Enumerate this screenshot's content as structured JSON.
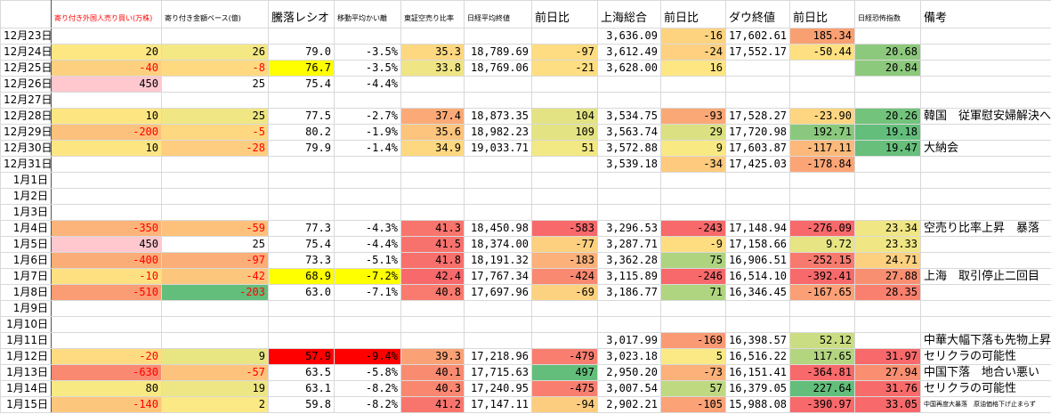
{
  "table": {
    "header": [
      null,
      "寄り付き外国人売り買い(万株)",
      "寄り付き金額ベース(億)",
      "騰落レシオ",
      "移動平均かい離",
      "東証空売り比率",
      "日経平均終値",
      "前日比",
      "上海総合",
      "前日比",
      "ダウ終値",
      "前日比",
      "日経恐怖指数",
      "備考"
    ],
    "rows": [
      {
        "cells": [
          "12月23日",
          null,
          null,
          null,
          null,
          null,
          null,
          null,
          "3,636.09",
          "-16",
          "17,602.61",
          "185.34",
          null,
          null
        ],
        "fills": [
          null,
          null,
          null,
          null,
          null,
          null,
          null,
          null,
          null,
          "#fdd380",
          null,
          "#f9a073",
          null,
          null
        ]
      },
      {
        "cells": [
          "12月24日",
          "20",
          "26",
          "79.0",
          "-3.5%",
          "35.3",
          "18,789.69",
          "-97",
          "3,612.49",
          "-24",
          "17,552.17",
          "-50.44",
          "20.68",
          null
        ],
        "fills": [
          null,
          "#fde783",
          "#f3e884",
          null,
          null,
          "#fed880",
          null,
          "#fedc81",
          null,
          "#fed07f",
          null,
          "#fee081",
          "#8dc97d",
          null
        ]
      },
      {
        "cells": [
          "12月25日",
          "-40",
          "-8",
          "76.7",
          "-3.5%",
          "33.8",
          "18,769.06",
          "-21",
          "3,628.00",
          "16",
          null,
          null,
          "20.84",
          null
        ],
        "fills": [
          null,
          "#fcd07f",
          "#fed980",
          "#ffff00",
          null,
          "#f0e584",
          null,
          "#fede82",
          null,
          "#fee683",
          null,
          null,
          "#8dc97d",
          null
        ]
      },
      {
        "cells": [
          "12月26日",
          "450",
          "25",
          "75.4",
          "-4.4%",
          null,
          null,
          null,
          null,
          null,
          null,
          null,
          null,
          null
        ],
        "fills": [
          null,
          "#ffc7ce",
          null,
          null,
          null,
          null,
          null,
          null,
          null,
          null,
          null,
          null,
          null,
          null
        ]
      },
      {
        "cells": [
          "12月27日",
          null,
          null,
          null,
          null,
          null,
          null,
          null,
          null,
          null,
          null,
          null,
          null,
          null
        ],
        "fills": [
          null,
          null,
          null,
          null,
          null,
          null,
          null,
          null,
          null,
          null,
          null,
          null,
          null,
          null
        ]
      },
      {
        "cells": [
          "12月28日",
          "10",
          "25",
          "77.5",
          "-2.7%",
          "37.4",
          "18,873.35",
          "104",
          "3,534.75",
          "-93",
          "17,528.27",
          "-23.90",
          "20.26",
          "韓国　従軍慰安婦解決へ"
        ],
        "fills": [
          null,
          "#fde682",
          "#f0e784",
          null,
          null,
          "#fbaa77",
          null,
          "#e4e383",
          null,
          "#fba877",
          null,
          "#fed580",
          "#73c37c",
          null
        ]
      },
      {
        "cells": [
          "12月29日",
          "-200",
          "-5",
          "80.2",
          "-1.9%",
          "35.6",
          "18,982.23",
          "109",
          "3,563.74",
          "29",
          "17,720.98",
          "192.71",
          "19.18",
          null
        ],
        "fills": [
          null,
          "#fcc17c",
          "#fdd880",
          null,
          null,
          "#fcc47c",
          null,
          "#e4e383",
          null,
          "#dbe182",
          null,
          "#8ac97d",
          "#63be7b",
          null
        ]
      },
      {
        "cells": [
          "12月30日",
          "10",
          "-28",
          "79.9",
          "-1.4%",
          "34.9",
          "19,033.71",
          "51",
          "3,572.88",
          "9",
          "17,603.87",
          "-117.11",
          "19.47",
          "大納会"
        ],
        "fills": [
          null,
          "#fde682",
          "#fecd7f",
          null,
          null,
          "#fed880",
          null,
          "#f2e884",
          null,
          "#f9e983",
          null,
          "#fcb97a",
          "#67bf7b",
          null
        ]
      },
      {
        "cells": [
          "12月31日",
          null,
          null,
          null,
          null,
          null,
          null,
          null,
          "3,539.18",
          "-34",
          "17,425.03",
          "-178.84",
          null,
          null
        ],
        "fills": [
          null,
          null,
          null,
          null,
          null,
          null,
          null,
          null,
          null,
          "#fdca7e",
          null,
          "#fba577",
          null,
          null
        ]
      },
      {
        "cells": [
          "1月1日",
          null,
          null,
          null,
          null,
          null,
          null,
          null,
          null,
          null,
          null,
          null,
          null,
          null
        ],
        "fills": [
          null,
          null,
          null,
          null,
          null,
          null,
          null,
          null,
          null,
          null,
          null,
          null,
          null,
          null
        ]
      },
      {
        "cells": [
          "1月2日",
          null,
          null,
          null,
          null,
          null,
          null,
          null,
          null,
          null,
          null,
          null,
          null,
          null
        ],
        "fills": [
          null,
          null,
          null,
          null,
          null,
          null,
          null,
          null,
          null,
          null,
          null,
          null,
          null,
          null
        ]
      },
      {
        "cells": [
          "1月3日",
          null,
          null,
          null,
          null,
          null,
          null,
          null,
          null,
          null,
          null,
          null,
          null,
          null
        ],
        "fills": [
          null,
          null,
          null,
          null,
          null,
          null,
          null,
          null,
          null,
          null,
          null,
          null,
          null,
          null
        ]
      },
      {
        "cells": [
          "1月4日",
          "-350",
          "-59",
          "77.3",
          "-4.3%",
          "41.3",
          "18,450.98",
          "-583",
          "3,296.53",
          "-243",
          "17,148.94",
          "-276.09",
          "23.34",
          "空売り比率上昇　暴落"
        ],
        "fills": [
          null,
          "#fcb47a",
          "#fdc17c",
          null,
          null,
          "#f8756d",
          null,
          "#f8696b",
          null,
          "#f8696b",
          null,
          "#f8696b",
          "#f0e784",
          null
        ]
      },
      {
        "cells": [
          "1月5日",
          "450",
          "25",
          "75.4",
          "-4.4%",
          "41.5",
          "18,374.00",
          "-77",
          "3,287.71",
          "-9",
          "17,158.66",
          "9.72",
          "23.33",
          null
        ],
        "fills": [
          null,
          "#ffc7ce",
          null,
          null,
          null,
          "#f8726d",
          null,
          "#fcd07f",
          null,
          "#fedd81",
          null,
          "#e6e483",
          "#f0e784",
          null
        ]
      },
      {
        "cells": [
          "1月6日",
          "-400",
          "-97",
          "73.3",
          "-5.1%",
          "41.8",
          "18,191.32",
          "-183",
          "3,362.28",
          "75",
          "16,906.51",
          "-252.15",
          "24.71",
          null
        ],
        "fills": [
          null,
          "#fbad78",
          "#fcae78",
          null,
          null,
          "#f8706c",
          null,
          "#fbb179",
          null,
          "#aed480",
          null,
          "#f87a6e",
          "#fcd07f",
          null
        ]
      },
      {
        "cells": [
          "1月7日",
          "-10",
          "-42",
          "68.9",
          "-7.2%",
          "42.4",
          "17,767.34",
          "-424",
          "3,115.89",
          "-246",
          "16,514.10",
          "-392.41",
          "27.88",
          "上海　取引停止二回目"
        ],
        "fills": [
          null,
          "#fee081",
          "#fdc67d",
          "#ffff00",
          "#ffff00",
          "#f8696b",
          null,
          "#f98970",
          null,
          "#f8696b",
          null,
          "#f8696b",
          "#f98f71",
          null
        ]
      },
      {
        "cells": [
          "1月8日",
          "-510",
          "-203",
          "63.0",
          "-7.1%",
          "40.8",
          "17,697.96",
          "-69",
          "3,186.77",
          "71",
          "16,346.45",
          "-167.65",
          "28.35",
          null
        ],
        "fills": [
          null,
          "#fa9c74",
          "#63be7b",
          null,
          null,
          "#f97a6e",
          null,
          "#fcd17f",
          null,
          "#b0d580",
          null,
          "#fba076",
          "#f9806f",
          null
        ]
      },
      {
        "cells": [
          "1月9日",
          null,
          null,
          null,
          null,
          null,
          null,
          null,
          null,
          null,
          null,
          null,
          null,
          null
        ],
        "fills": [
          null,
          null,
          null,
          null,
          null,
          null,
          null,
          null,
          null,
          null,
          null,
          null,
          null,
          null
        ]
      },
      {
        "cells": [
          "1月10日",
          null,
          null,
          null,
          null,
          null,
          null,
          null,
          null,
          null,
          null,
          null,
          null,
          null
        ],
        "fills": [
          null,
          null,
          null,
          null,
          null,
          null,
          null,
          null,
          null,
          null,
          null,
          null,
          null,
          null
        ]
      },
      {
        "cells": [
          "1月11日",
          null,
          null,
          null,
          null,
          null,
          null,
          null,
          "3,017.99",
          "-169",
          "16,398.57",
          "52.12",
          null,
          "中華大幅下落も先物上昇"
        ],
        "fills": [
          null,
          null,
          null,
          null,
          null,
          null,
          null,
          null,
          null,
          "#fa9a74",
          null,
          "#cadd82",
          null,
          null
        ]
      },
      {
        "cells": [
          "1月12日",
          "-20",
          "9",
          "57.9",
          "-9.4%",
          "39.3",
          "17,218.96",
          "-479",
          "3,023.18",
          "5",
          "16,516.22",
          "117.65",
          "31.97",
          "セリクラの可能性"
        ],
        "fills": [
          null,
          "#fedb81",
          "#e8e583",
          "#ff0000",
          "#ff0000",
          "#faa276",
          null,
          "#f97e6f",
          null,
          "#fae984",
          null,
          "#b3d580",
          "#f8696b",
          null
        ]
      },
      {
        "cells": [
          "1月13日",
          "-630",
          "-57",
          "63.5",
          "-5.8%",
          "40.1",
          "17,715.63",
          "497",
          "2,950.20",
          "-73",
          "16,151.41",
          "-364.81",
          "27.94",
          "中国下落　地合い悪い"
        ],
        "fills": [
          null,
          "#f98a71",
          "#fdc37d",
          null,
          null,
          "#f98b71",
          null,
          "#63be7b",
          null,
          "#fbb179",
          null,
          "#f8696b",
          "#f98e71",
          null
        ]
      },
      {
        "cells": [
          "1月14日",
          "80",
          "19",
          "63.1",
          "-8.2%",
          "40.3",
          "17,240.95",
          "-475",
          "3,007.54",
          "57",
          "16,379.05",
          "227.64",
          "31.76",
          "セリクラの可能性"
        ],
        "fills": [
          null,
          "#f9e983",
          "#eee684",
          null,
          null,
          "#f98770",
          null,
          "#f97e6f",
          null,
          "#bfd981",
          null,
          "#63be7b",
          "#f86b6b",
          null
        ]
      },
      {
        "cells": [
          "1月15日",
          "-140",
          "2",
          "59.8",
          "-8.2%",
          "41.2",
          "17,147.11",
          "-94",
          "2,902.21",
          "-105",
          "15,988.08",
          "-390.97",
          "33.05",
          "中国再度大暴落　原油価格下げ止まらず"
        ],
        "fills": [
          null,
          "#fdc67d",
          "#fae984",
          null,
          null,
          "#f8756d",
          null,
          "#fdcd7f",
          null,
          "#fba276",
          null,
          "#f8696b",
          "#f8696b",
          null
        ]
      }
    ]
  }
}
